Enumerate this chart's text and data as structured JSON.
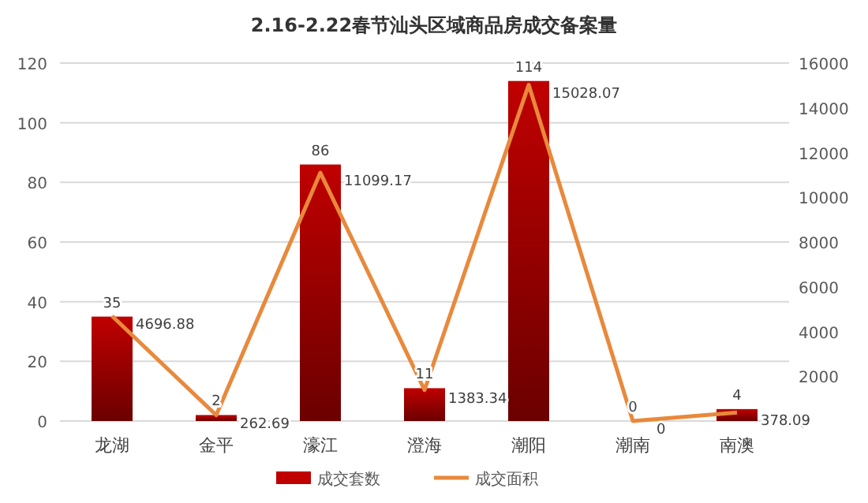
{
  "chart_data": {
    "type": "bar",
    "title": "2.16-2.22春节汕头区域商品房成交备案量",
    "categories": [
      "龙湖",
      "金平",
      "濠江",
      "澄海",
      "潮阳",
      "潮南",
      "南澳"
    ],
    "series": [
      {
        "name": "成交套数",
        "color": "#c00000",
        "values": [
          35,
          2,
          86,
          11,
          114,
          0,
          4
        ]
      },
      {
        "name": "成交面积",
        "color": "#e8893c",
        "type": "line",
        "axis": "y2",
        "values": [
          4696.88,
          262.69,
          11099.17,
          1383.34,
          15028.07,
          0,
          378.09
        ]
      }
    ],
    "ylim": [
      0,
      120
    ],
    "yticks": [
      0,
      20,
      40,
      60,
      80,
      100,
      120
    ],
    "y2lim": [
      0,
      16000
    ],
    "y2ticks": [
      0,
      2000,
      4000,
      6000,
      8000,
      10000,
      12000,
      14000,
      16000
    ],
    "grid": "y",
    "legend": "bottom",
    "data_labels": true,
    "marker": "none"
  }
}
